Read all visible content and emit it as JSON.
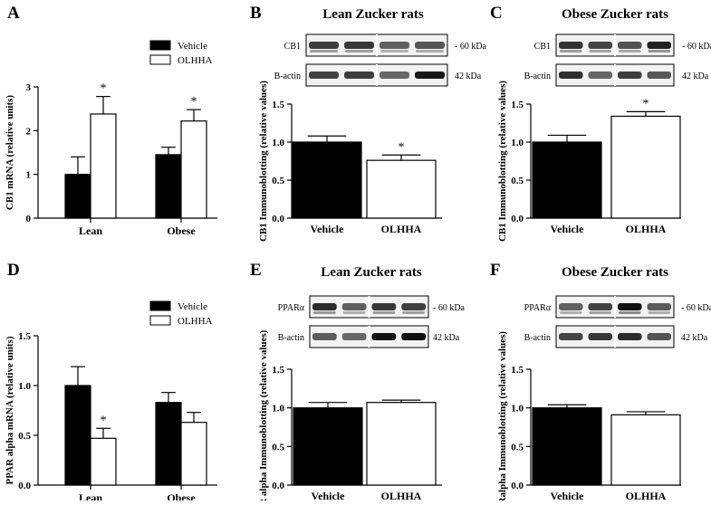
{
  "panels": [
    {
      "letter": "A"
    },
    {
      "letter": "B"
    },
    {
      "letter": "C"
    },
    {
      "letter": "D"
    },
    {
      "letter": "E"
    },
    {
      "letter": "F"
    }
  ],
  "colors": {
    "vehicle": "#000000",
    "olhha": "#ffffff",
    "axis": "#000000"
  },
  "blots": {
    "B": {
      "title": "Lean Zucker rats",
      "rows": [
        {
          "label": "CB1",
          "size": "- 60 kDa"
        },
        {
          "label": "B-actin",
          "size": "42 kDa"
        }
      ]
    },
    "C": {
      "title": "Obese Zucker rats",
      "rows": [
        {
          "label": "CB1",
          "size": "- 60 kDa"
        },
        {
          "label": "B-actin",
          "size": "42 kDa"
        }
      ]
    },
    "E": {
      "title": "Lean Zucker rats",
      "rows": [
        {
          "label": "PPARα",
          "size": "- 60 kDa"
        },
        {
          "label": "B-actin",
          "size": "42 kDa"
        }
      ]
    },
    "F": {
      "title": "Obese Zucker rats",
      "rows": [
        {
          "label": "PPARα",
          "size": "- 60 kDa"
        },
        {
          "label": "B-actin",
          "size": "42 kDa"
        }
      ]
    }
  },
  "chart_data": [
    {
      "panel": "A",
      "type": "bar",
      "categories": [
        "Lean",
        "Obese"
      ],
      "series": [
        {
          "name": "Vehicle",
          "values": [
            1.0,
            1.45
          ],
          "errors": [
            0.4,
            0.17
          ],
          "significant": [
            false,
            false
          ]
        },
        {
          "name": "OLHHA",
          "values": [
            2.38,
            2.22
          ],
          "errors": [
            0.4,
            0.26
          ],
          "significant": [
            true,
            true
          ]
        }
      ],
      "ylabel": "CB1 mRNA (relative units)",
      "ylim": [
        0,
        3
      ],
      "yticks": [
        "0",
        "1",
        "2",
        "3"
      ],
      "legend": "top-right",
      "significance_mark": "*"
    },
    {
      "panel": "B",
      "type": "bar",
      "categories": [
        "Vehicle",
        "OLHHA"
      ],
      "values": [
        1.0,
        0.76
      ],
      "errors": [
        0.08,
        0.07
      ],
      "significant": [
        false,
        true
      ],
      "ylabel": "CB1 Immunoblotting (relative values)",
      "ylim": [
        0,
        1.5
      ],
      "yticks": [
        "0.0",
        "0.5",
        "1.0",
        "1.5"
      ],
      "significance_mark": "*"
    },
    {
      "panel": "C",
      "type": "bar",
      "categories": [
        "Vehicle",
        "OLHHA"
      ],
      "values": [
        1.0,
        1.34
      ],
      "errors": [
        0.09,
        0.06
      ],
      "significant": [
        false,
        true
      ],
      "ylabel": "CB1 Immunoblotting (relative values)",
      "ylim": [
        0,
        1.5
      ],
      "yticks": [
        "0.0",
        "0.5",
        "1.0",
        "1.5"
      ],
      "significance_mark": "*"
    },
    {
      "panel": "D",
      "type": "bar",
      "categories": [
        "Lean",
        "Obese"
      ],
      "series": [
        {
          "name": "Vehicle",
          "values": [
            1.0,
            0.83
          ],
          "errors": [
            0.19,
            0.1
          ],
          "significant": [
            false,
            false
          ]
        },
        {
          "name": "OLHHA",
          "values": [
            0.47,
            0.63
          ],
          "errors": [
            0.1,
            0.1
          ],
          "significant": [
            true,
            false
          ]
        }
      ],
      "ylabel": "PPAR alpha mRNA (relative units)",
      "ylim": [
        0,
        1.5
      ],
      "yticks": [
        "0.0",
        "0.5",
        "1.0",
        "1.5"
      ],
      "legend": "top-right",
      "significance_mark": "*"
    },
    {
      "panel": "E",
      "type": "bar",
      "categories": [
        "Vehicle",
        "OLHHA"
      ],
      "values": [
        1.0,
        1.07
      ],
      "errors": [
        0.07,
        0.03
      ],
      "significant": [
        false,
        false
      ],
      "ylabel": "PPAR alpha Immunoblotting (relative values)",
      "ylim": [
        0,
        1.5
      ],
      "yticks": [
        "0.0",
        "0.5",
        "1.0",
        "1.5"
      ]
    },
    {
      "panel": "F",
      "type": "bar",
      "categories": [
        "Vehicle",
        "OLHHA"
      ],
      "values": [
        1.0,
        0.91
      ],
      "errors": [
        0.04,
        0.04
      ],
      "significant": [
        false,
        false
      ],
      "ylabel": "PPARalpha Immunoblotting (relative values)",
      "ylim": [
        0,
        1.5
      ],
      "yticks": [
        "0.0",
        "0.5",
        "1.0",
        "1.5"
      ]
    }
  ]
}
